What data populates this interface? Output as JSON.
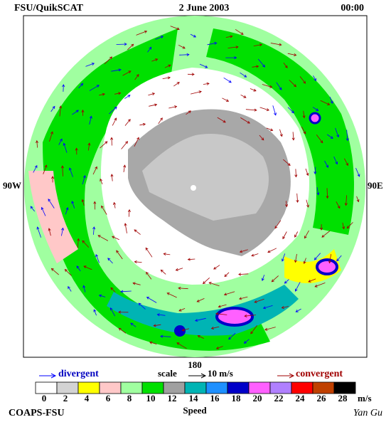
{
  "header": {
    "left": "FSU/QuikSCAT",
    "center": "2 June 2003",
    "right": "00:00"
  },
  "map": {
    "west_label": "90W",
    "east_label": "90E",
    "south_label": "180"
  },
  "legend": {
    "divergent": "divergent",
    "scale": "scale",
    "scale_value": "10 m/s",
    "convergent": "convergent"
  },
  "colorbar": {
    "ticks": [
      0,
      2,
      4,
      6,
      8,
      10,
      12,
      14,
      16,
      18,
      20,
      22,
      24,
      26,
      28
    ],
    "unit": "m/s",
    "label": "Speed",
    "colors": [
      "#ffffff",
      "#d3d3d3",
      "#ffff00",
      "#ffc8c8",
      "#a0ffa0",
      "#00e000",
      "#a0a0a0",
      "#00b4b4",
      "#1e90ff",
      "#0000c8",
      "#ff60ff",
      "#b080ff",
      "#ff0000",
      "#c04000",
      "#000000"
    ]
  },
  "footer": {
    "left": "COAPS-FSU",
    "right": "Yan Gu"
  }
}
